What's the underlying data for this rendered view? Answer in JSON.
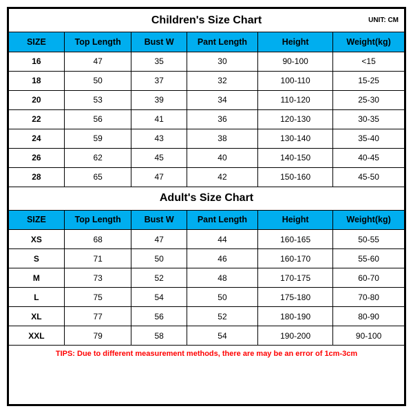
{
  "unit_label": "UNIT: CM",
  "children": {
    "title": "Children's Size Chart",
    "columns": [
      "SIZE",
      "Top Length",
      "Bust W",
      "Pant Length",
      "Height",
      "Weight(kg)"
    ],
    "rows": [
      [
        "16",
        "47",
        "35",
        "30",
        "90-100",
        "<15"
      ],
      [
        "18",
        "50",
        "37",
        "32",
        "100-110",
        "15-25"
      ],
      [
        "20",
        "53",
        "39",
        "34",
        "110-120",
        "25-30"
      ],
      [
        "22",
        "56",
        "41",
        "36",
        "120-130",
        "30-35"
      ],
      [
        "24",
        "59",
        "43",
        "38",
        "130-140",
        "35-40"
      ],
      [
        "26",
        "62",
        "45",
        "40",
        "140-150",
        "40-45"
      ],
      [
        "28",
        "65",
        "47",
        "42",
        "150-160",
        "45-50"
      ]
    ]
  },
  "adult": {
    "title": "Adult's Size Chart",
    "columns": [
      "SIZE",
      "Top Length",
      "Bust W",
      "Pant Length",
      "Height",
      "Weight(kg)"
    ],
    "rows": [
      [
        "XS",
        "68",
        "47",
        "44",
        "160-165",
        "50-55"
      ],
      [
        "S",
        "71",
        "50",
        "46",
        "160-170",
        "55-60"
      ],
      [
        "M",
        "73",
        "52",
        "48",
        "170-175",
        "60-70"
      ],
      [
        "L",
        "75",
        "54",
        "50",
        "175-180",
        "70-80"
      ],
      [
        "XL",
        "77",
        "56",
        "52",
        "180-190",
        "80-90"
      ],
      [
        "XXL",
        "79",
        "58",
        "54",
        "190-200",
        "90-100"
      ]
    ]
  },
  "tips": "TIPS: Due to different measurement methods, there are may be an error of 1cm-3cm",
  "colors": {
    "header_bg": "#00aeef",
    "border": "#000000",
    "tips_text": "#ff0000",
    "background": "#ffffff"
  }
}
